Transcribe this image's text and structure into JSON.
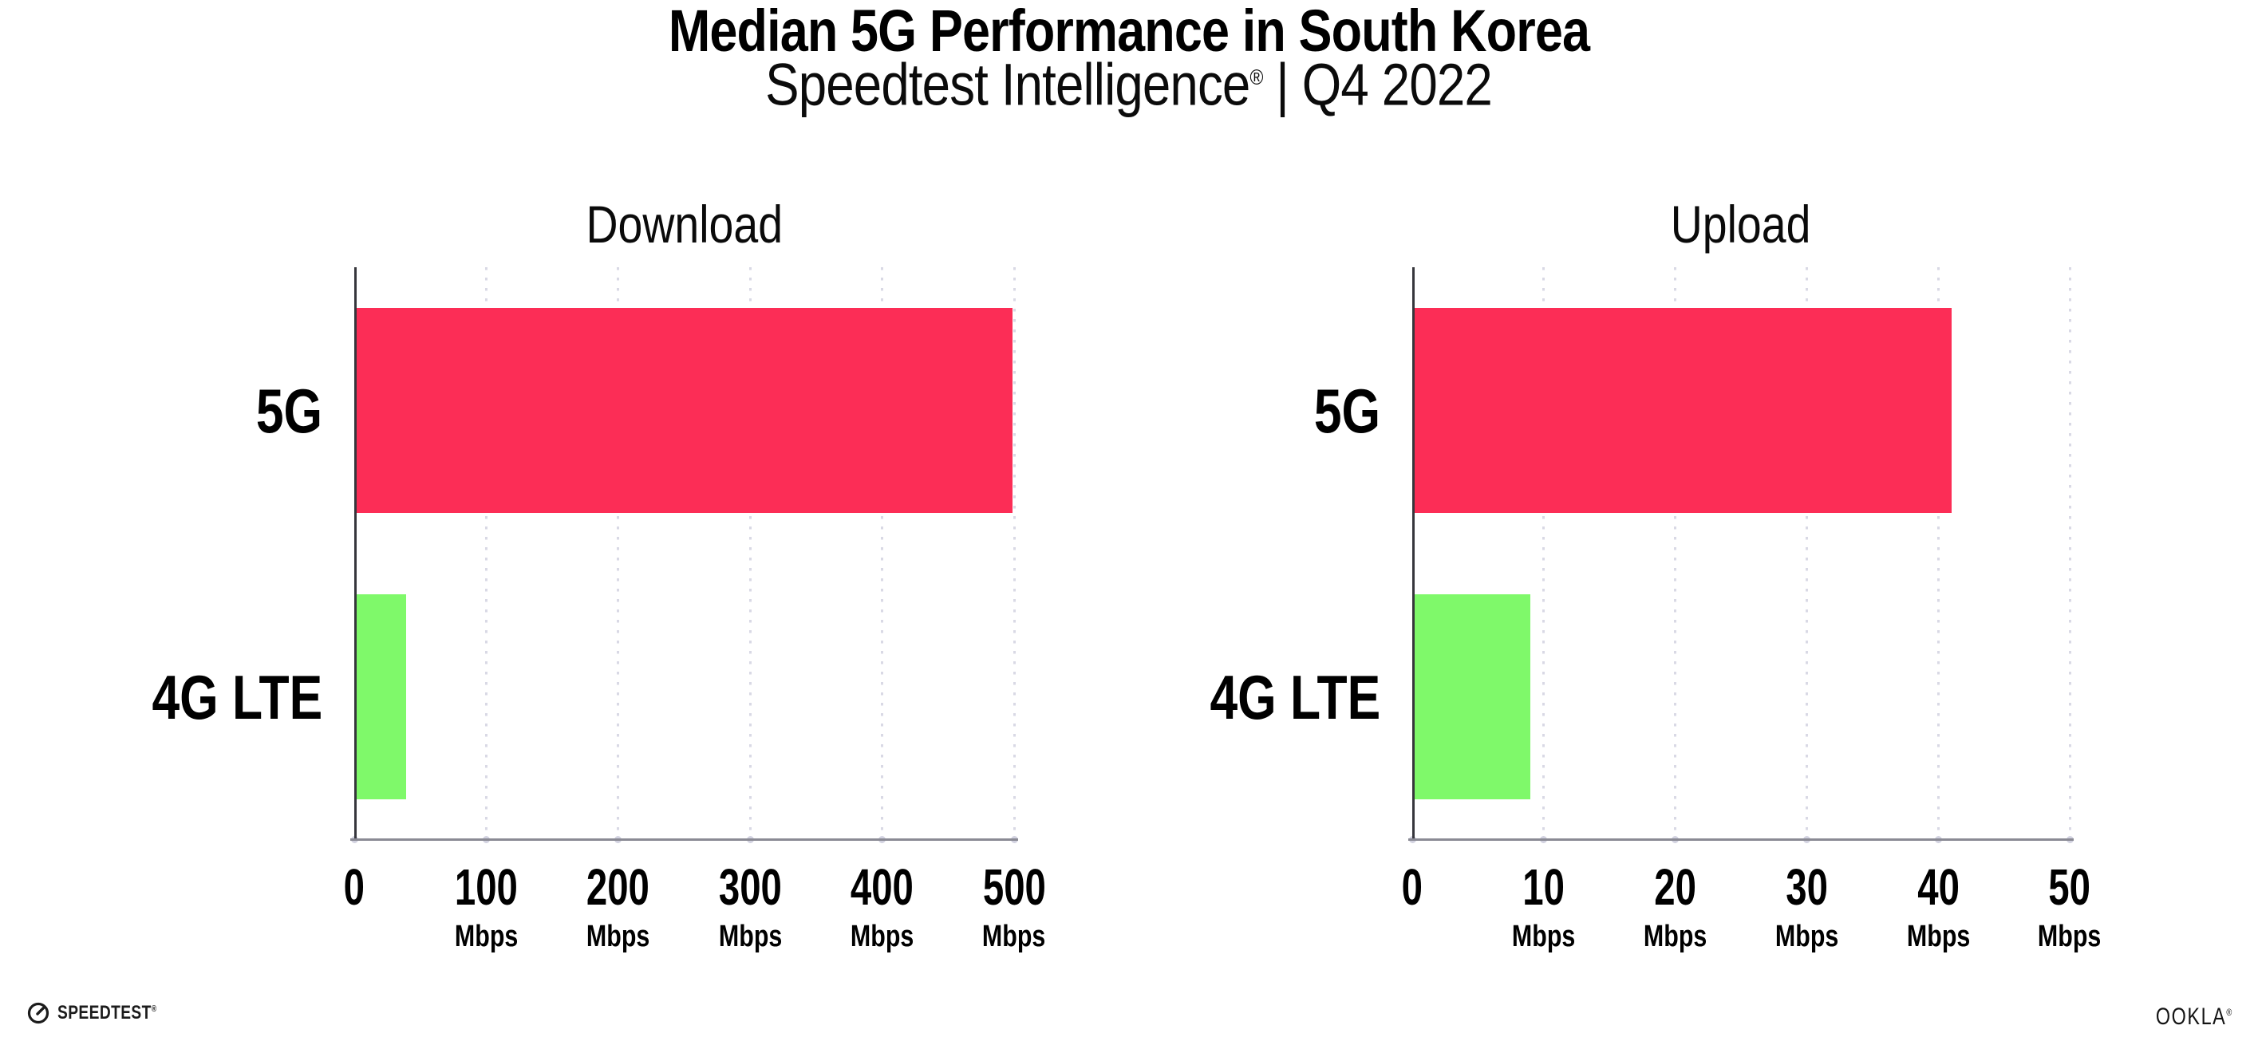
{
  "header": {
    "title": "Median 5G Performance in South Korea",
    "subtitle_brand": "Speedtest Intelligence",
    "subtitle_reg": "®",
    "subtitle_rest": " | Q4 2022"
  },
  "colors": {
    "bar_5g": "#FC2D56",
    "bar_4g_lte": "#7FF96A",
    "gridline": "#D9D9E5",
    "baseline": "#8A8A94",
    "yaxis_line": "#36363C",
    "text": "#000000"
  },
  "chart_data": [
    {
      "type": "bar",
      "orientation": "horizontal",
      "title": "Download",
      "categories": [
        "5G",
        "4G LTE"
      ],
      "values": [
        499,
        39
      ],
      "unit": "Mbps",
      "xlim": [
        0,
        500
      ],
      "bar_colors": [
        "#FC2D56",
        "#7FF96A"
      ],
      "grid": "dotted-vertical",
      "legend": "none",
      "xticks": [
        {
          "label": "0",
          "unit": ""
        },
        {
          "label": "100",
          "unit": "Mbps"
        },
        {
          "label": "200",
          "unit": "Mbps"
        },
        {
          "label": "300",
          "unit": "Mbps"
        },
        {
          "label": "400",
          "unit": "Mbps"
        },
        {
          "label": "500",
          "unit": "Mbps"
        }
      ]
    },
    {
      "type": "bar",
      "orientation": "horizontal",
      "title": "Upload",
      "categories": [
        "5G",
        "4G LTE"
      ],
      "values": [
        41,
        9
      ],
      "unit": "Mbps",
      "xlim": [
        0,
        50
      ],
      "bar_colors": [
        "#FC2D56",
        "#7FF96A"
      ],
      "grid": "dotted-vertical",
      "legend": "none",
      "xticks": [
        {
          "label": "0",
          "unit": ""
        },
        {
          "label": "10",
          "unit": "Mbps"
        },
        {
          "label": "20",
          "unit": "Mbps"
        },
        {
          "label": "30",
          "unit": "Mbps"
        },
        {
          "label": "40",
          "unit": "Mbps"
        },
        {
          "label": "50",
          "unit": "Mbps"
        }
      ]
    }
  ],
  "footer": {
    "speedtest": "SPEEDTEST",
    "speedtest_reg": "®",
    "ookla": "OOKLA",
    "ookla_reg": "®"
  }
}
